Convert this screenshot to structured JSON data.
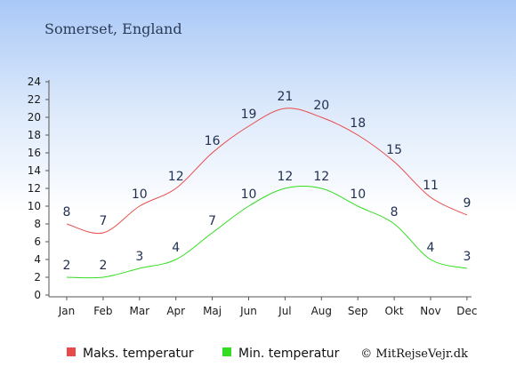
{
  "chart_data": {
    "type": "line",
    "title": "Somerset, England",
    "categories": [
      "Jan",
      "Feb",
      "Mar",
      "Apr",
      "Maj",
      "Jun",
      "Jul",
      "Aug",
      "Sep",
      "Okt",
      "Nov",
      "Dec"
    ],
    "series": [
      {
        "name": "Maks. temperatur",
        "color": "#e84a4a",
        "values": [
          8,
          7,
          10,
          12,
          16,
          19,
          21,
          20,
          18,
          15,
          11,
          9
        ]
      },
      {
        "name": "Min. temperatur",
        "color": "#33dd22",
        "values": [
          2,
          2,
          3,
          4,
          7,
          10,
          12,
          12,
          10,
          8,
          4,
          3
        ]
      }
    ],
    "ylim": [
      0,
      24
    ],
    "yticks": [
      0,
      2,
      4,
      6,
      8,
      10,
      12,
      14,
      16,
      18,
      20,
      22,
      24
    ],
    "legend_position": "bottom",
    "grid": false
  },
  "copyright": "© MitRejseVejr.dk"
}
